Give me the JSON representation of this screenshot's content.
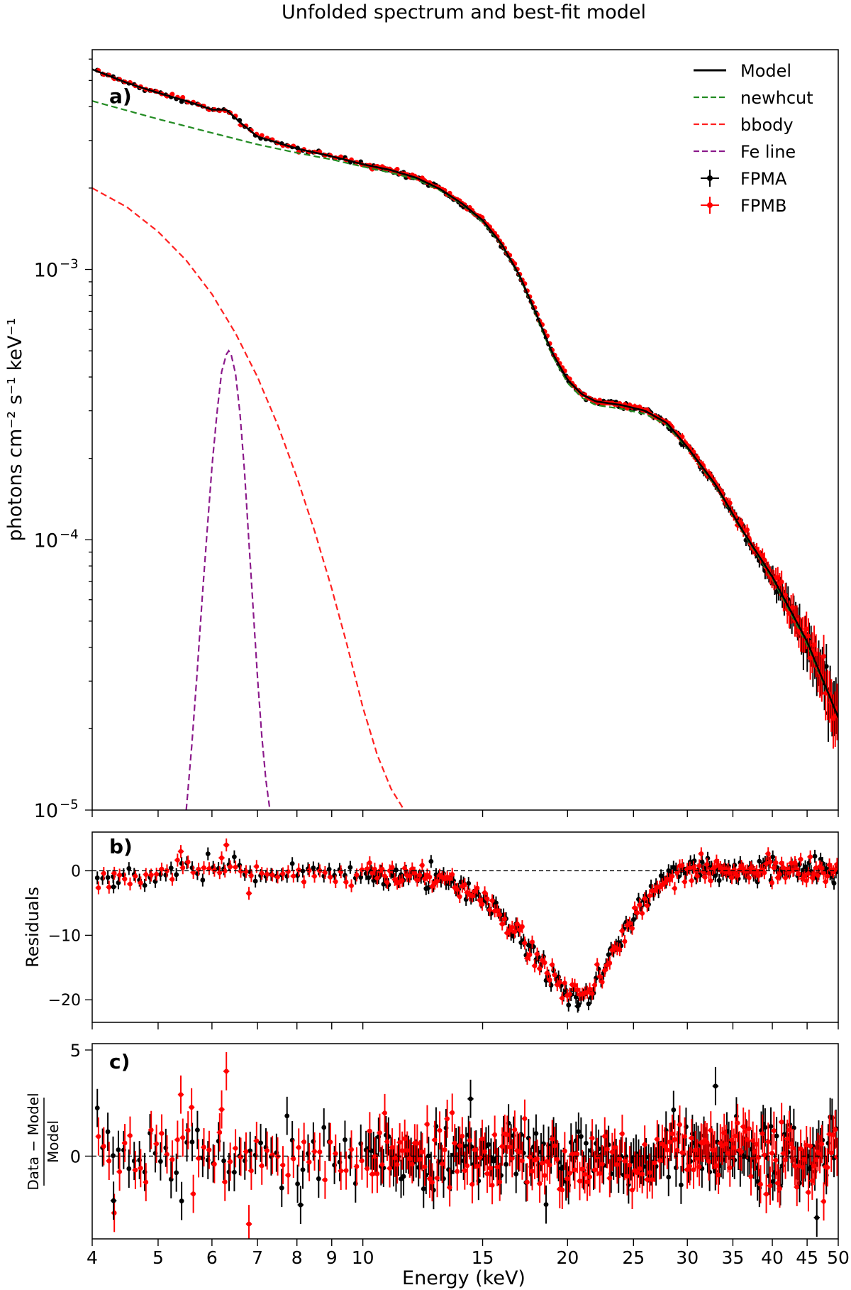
{
  "chart_data": [
    {
      "panel": "a",
      "type": "line",
      "title": "Unfolded spectrum and best-fit model",
      "panel_label": "a)",
      "ylabel": "photons cm⁻² s⁻¹ keV⁻¹",
      "xscale": "log",
      "yscale": "log",
      "xlim": [
        4,
        50
      ],
      "ylim": [
        1e-05,
        0.0065
      ],
      "ytick_labels": [
        {
          "value": 0.001,
          "base": "10",
          "exp": "−3"
        },
        {
          "value": 0.0001,
          "base": "10",
          "exp": "−4"
        },
        {
          "value": 1e-05,
          "base": "10",
          "exp": "−5"
        }
      ],
      "legend_position": "top-right",
      "legend": [
        {
          "label": "Model",
          "color": "#000000",
          "style": "solid"
        },
        {
          "label": "newhcut",
          "color": "#228b22",
          "style": "dashed"
        },
        {
          "label": "bbody",
          "color": "#ff2020",
          "style": "dashed"
        },
        {
          "label": "Fe line",
          "color": "#8b1a8b",
          "style": "dashed"
        },
        {
          "label": "FPMA",
          "color": "#000000",
          "style": "errorbar"
        },
        {
          "label": "FPMB",
          "color": "#ff0000",
          "style": "errorbar"
        }
      ],
      "series": [
        {
          "name": "Model",
          "color": "#000000",
          "x": [
            4,
            4.5,
            5,
            5.5,
            6,
            6.3,
            6.6,
            7,
            8,
            9,
            10,
            11,
            12,
            13,
            14,
            15,
            16,
            17,
            18,
            19,
            20,
            21,
            22,
            24,
            26,
            28,
            30,
            33,
            36,
            40,
            45,
            50
          ],
          "y": [
            0.0055,
            0.0049,
            0.0045,
            0.0042,
            0.0039,
            0.0039,
            0.0035,
            0.0031,
            0.0028,
            0.00262,
            0.00245,
            0.00233,
            0.00218,
            0.00198,
            0.00175,
            0.00152,
            0.00124,
            0.00095,
            0.00068,
            0.00049,
            0.00039,
            0.000345,
            0.000325,
            0.000315,
            0.0003,
            0.00027,
            0.00022,
            0.00016,
            0.00011,
            7.3e-05,
            4.2e-05,
            2.2e-05
          ]
        },
        {
          "name": "newhcut",
          "color": "#228b22",
          "x": [
            4,
            5,
            6,
            7,
            8,
            9,
            10,
            11,
            12,
            13,
            14,
            15,
            16,
            17,
            18,
            19,
            20,
            21,
            22,
            24,
            26,
            28,
            30,
            33,
            36,
            40,
            45,
            50
          ],
          "y": [
            0.0042,
            0.0036,
            0.0032,
            0.0029,
            0.0027,
            0.00255,
            0.0024,
            0.00228,
            0.00215,
            0.00196,
            0.00174,
            0.0015,
            0.00123,
            0.00094,
            0.00067,
            0.00048,
            0.00038,
            0.000335,
            0.000315,
            0.000305,
            0.000292,
            0.000265,
            0.000218,
            0.000158,
            0.000109,
            7.2e-05,
            4.1e-05,
            2.2e-05
          ]
        },
        {
          "name": "bbody",
          "color": "#ff2020",
          "x": [
            4,
            4.5,
            5,
            5.5,
            6,
            6.5,
            7,
            7.5,
            8,
            8.5,
            9,
            9.5,
            10,
            10.5,
            11,
            11.5
          ],
          "y": [
            0.002,
            0.0017,
            0.00138,
            0.00108,
            0.00081,
            0.00058,
            0.0004,
            0.000265,
            0.00017,
            0.000107,
            6.6e-05,
            4e-05,
            2.4e-05,
            1.6e-05,
            1.2e-05,
            1e-05
          ]
        },
        {
          "name": "Fe line",
          "color": "#8b1a8b",
          "x": [
            5.5,
            5.6,
            5.7,
            5.8,
            5.9,
            6.0,
            6.1,
            6.2,
            6.3,
            6.35,
            6.4,
            6.5,
            6.6,
            6.7,
            6.8,
            6.9,
            7.0,
            7.1,
            7.2,
            7.3
          ],
          "y": [
            1e-05,
            1.7e-05,
            3.1e-05,
            5.9e-05,
            0.000106,
            0.000186,
            0.000291,
            0.000418,
            0.000485,
            0.0005,
            0.000487,
            0.00041,
            0.00029,
            0.000178,
            9.8e-05,
            5.5e-05,
            3.1e-05,
            1.9e-05,
            1.3e-05,
            1e-05
          ]
        }
      ],
      "data_series": [
        "FPMA",
        "FPMB"
      ],
      "data_note": "FPMA (black) and FPMB (red) points follow the Model curve with small scatter; fractional scatter grows above ~30 keV"
    },
    {
      "panel": "b",
      "type": "scatter",
      "panel_label": "b)",
      "ylabel": "Residuals",
      "xscale": "log",
      "xlim": [
        4,
        50
      ],
      "ylim": [
        -23.5,
        6
      ],
      "yticks": [
        0,
        -10,
        -20
      ],
      "ytick_labels": [
        "0",
        "−10",
        "−20"
      ],
      "reference_line": 0,
      "trend": {
        "x": [
          4,
          5,
          6,
          7,
          8,
          9,
          10,
          11,
          12,
          13,
          14,
          15,
          16,
          17,
          18,
          19,
          20,
          21,
          22,
          23,
          24,
          25,
          26,
          27,
          28,
          29,
          30,
          33,
          36,
          40,
          45,
          50
        ],
        "y": [
          -1.5,
          0,
          1,
          -0.5,
          -0.5,
          0,
          -0.5,
          -0.5,
          -0.3,
          -1.5,
          -3,
          -4.5,
          -7,
          -10,
          -13.5,
          -16.5,
          -19,
          -19.5,
          -17.5,
          -14,
          -10,
          -7,
          -4.5,
          -2.5,
          -1,
          -0.5,
          0,
          0,
          0,
          0,
          0,
          0
        ]
      },
      "outliers": [
        {
          "x": 5.4,
          "y": 3,
          "series": "FPMB"
        },
        {
          "x": 6.3,
          "y": 4,
          "series": "FPMB"
        },
        {
          "x": 6.2,
          "y": 2,
          "series": "FPMB"
        },
        {
          "x": 4.3,
          "y": -2.5,
          "series": "FPMA"
        },
        {
          "x": 6.8,
          "y": -3.5,
          "series": "FPMB"
        },
        {
          "x": 20.7,
          "y": -21,
          "series": "FPMA"
        }
      ]
    },
    {
      "panel": "c",
      "type": "scatter",
      "panel_label": "c)",
      "ylabel": "(Data − Model) / Model",
      "ylabel_numerator": "Data − Model",
      "ylabel_denominator": "Model",
      "xlabel": "Energy (keV)",
      "xscale": "log",
      "xlim": [
        4,
        50
      ],
      "ylim": [
        -3.9,
        5.3
      ],
      "yticks": [
        5,
        0
      ],
      "ytick_labels": [
        "5",
        "0"
      ],
      "xticks": [
        4,
        5,
        6,
        7,
        8,
        9,
        10,
        15,
        20,
        25,
        30,
        35,
        40,
        45,
        50
      ],
      "xtick_labels": [
        "4",
        "5",
        "6",
        "7",
        "8",
        "9",
        "10",
        "15",
        "20",
        "25",
        "30",
        "35",
        "40",
        "45",
        "50"
      ],
      "reference_line": 0,
      "outliers": [
        {
          "x": 6.3,
          "y": 4,
          "series": "FPMB"
        },
        {
          "x": 5.4,
          "y": 2.9,
          "series": "FPMB"
        },
        {
          "x": 5.6,
          "y": 2.3,
          "series": "FPMB"
        },
        {
          "x": 6.2,
          "y": 2.2,
          "series": "FPMB"
        },
        {
          "x": 14.4,
          "y": 2.7,
          "series": "FPMA"
        },
        {
          "x": 33,
          "y": 3.3,
          "series": "FPMA"
        },
        {
          "x": 4.3,
          "y": -2.1,
          "series": "FPMA"
        },
        {
          "x": 6.8,
          "y": -3.2,
          "series": "FPMB"
        },
        {
          "x": 8.1,
          "y": -2.3,
          "series": "FPMA"
        },
        {
          "x": 46.5,
          "y": -2.9,
          "series": "FPMA"
        }
      ]
    }
  ]
}
